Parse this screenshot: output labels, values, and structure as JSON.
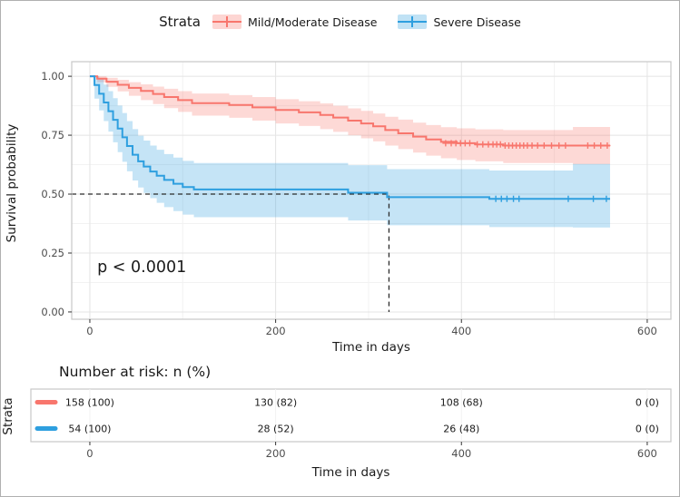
{
  "legend": {
    "title": "Strata",
    "items": [
      {
        "label": "Mild/Moderate Disease",
        "color": "#F8766D"
      },
      {
        "label": "Severe Disease",
        "color": "#2E9FDF"
      }
    ]
  },
  "chart_data": {
    "type": "line",
    "subtype": "kaplan-meier-step",
    "title": "",
    "xlabel": "Time in days",
    "ylabel": "Survival probability",
    "xlim": [
      0,
      600
    ],
    "ylim": [
      0,
      1
    ],
    "xticks": [
      0,
      200,
      400,
      600
    ],
    "xtick_labels": [
      "0",
      "200",
      "400",
      "600"
    ],
    "yticks": [
      0,
      0.25,
      0.5,
      0.75,
      1.0
    ],
    "ytick_labels": [
      "0.00",
      "0.25",
      "0.50",
      "0.75",
      "1.00"
    ],
    "x_minor_gridlines": [
      100,
      300,
      500
    ],
    "y_minor_gridlines": [
      0.125,
      0.375,
      0.625,
      0.875
    ],
    "grid": "on",
    "legend_position": "top",
    "annotation": {
      "text": "p < 0.0001",
      "x": 8,
      "y": 0.17
    },
    "median_line": {
      "x": 322,
      "y": 0.5
    },
    "series": [
      {
        "id": "mild-moderate",
        "name": "Mild/Moderate Disease",
        "color": "#F8766D",
        "points": [
          [
            0,
            1.0
          ],
          [
            8,
            0.99
          ],
          [
            18,
            0.977
          ],
          [
            30,
            0.964
          ],
          [
            42,
            0.951
          ],
          [
            55,
            0.938
          ],
          [
            68,
            0.925
          ],
          [
            80,
            0.912
          ],
          [
            95,
            0.899
          ],
          [
            110,
            0.886
          ],
          [
            150,
            0.878
          ],
          [
            175,
            0.868
          ],
          [
            200,
            0.857
          ],
          [
            225,
            0.847
          ],
          [
            248,
            0.836
          ],
          [
            262,
            0.825
          ],
          [
            278,
            0.812
          ],
          [
            292,
            0.8
          ],
          [
            305,
            0.788
          ],
          [
            318,
            0.772
          ],
          [
            332,
            0.758
          ],
          [
            348,
            0.744
          ],
          [
            362,
            0.732
          ],
          [
            378,
            0.722
          ],
          [
            395,
            0.716
          ],
          [
            415,
            0.711
          ],
          [
            445,
            0.706
          ],
          [
            560,
            0.706
          ]
        ],
        "ci": [
          [
            0,
            1.0,
            1.0
          ],
          [
            8,
            0.975,
            1.0
          ],
          [
            18,
            0.955,
            0.993
          ],
          [
            30,
            0.936,
            0.985
          ],
          [
            42,
            0.917,
            0.975
          ],
          [
            55,
            0.899,
            0.966
          ],
          [
            68,
            0.882,
            0.956
          ],
          [
            80,
            0.865,
            0.947
          ],
          [
            95,
            0.849,
            0.937
          ],
          [
            110,
            0.833,
            0.927
          ],
          [
            150,
            0.824,
            0.92
          ],
          [
            175,
            0.812,
            0.912
          ],
          [
            200,
            0.8,
            0.903
          ],
          [
            225,
            0.789,
            0.894
          ],
          [
            248,
            0.776,
            0.885
          ],
          [
            262,
            0.764,
            0.875
          ],
          [
            278,
            0.75,
            0.864
          ],
          [
            292,
            0.737,
            0.853
          ],
          [
            305,
            0.724,
            0.842
          ],
          [
            318,
            0.706,
            0.828
          ],
          [
            332,
            0.691,
            0.816
          ],
          [
            348,
            0.676,
            0.803
          ],
          [
            362,
            0.663,
            0.793
          ],
          [
            378,
            0.652,
            0.784
          ],
          [
            395,
            0.645,
            0.779
          ],
          [
            415,
            0.639,
            0.775
          ],
          [
            445,
            0.632,
            0.772
          ],
          [
            520,
            0.627,
            0.785
          ],
          [
            560,
            0.627,
            0.785
          ]
        ],
        "censor": [
          [
            383,
            0.716
          ],
          [
            389,
            0.716
          ],
          [
            394,
            0.716
          ],
          [
            399,
            0.716
          ],
          [
            404,
            0.716
          ],
          [
            409,
            0.716
          ],
          [
            417,
            0.711
          ],
          [
            423,
            0.711
          ],
          [
            429,
            0.711
          ],
          [
            434,
            0.711
          ],
          [
            438,
            0.711
          ],
          [
            442,
            0.711
          ],
          [
            447,
            0.706
          ],
          [
            451,
            0.706
          ],
          [
            455,
            0.706
          ],
          [
            459,
            0.706
          ],
          [
            463,
            0.706
          ],
          [
            467,
            0.706
          ],
          [
            471,
            0.706
          ],
          [
            476,
            0.706
          ],
          [
            482,
            0.706
          ],
          [
            489,
            0.706
          ],
          [
            497,
            0.706
          ],
          [
            505,
            0.706
          ],
          [
            512,
            0.706
          ],
          [
            536,
            0.706
          ],
          [
            543,
            0.706
          ],
          [
            550,
            0.706
          ],
          [
            557,
            0.706
          ]
        ]
      },
      {
        "id": "severe",
        "name": "Severe Disease",
        "color": "#2E9FDF",
        "points": [
          [
            0,
            1.0
          ],
          [
            5,
            0.963
          ],
          [
            10,
            0.926
          ],
          [
            15,
            0.889
          ],
          [
            20,
            0.852
          ],
          [
            25,
            0.815
          ],
          [
            30,
            0.778
          ],
          [
            35,
            0.741
          ],
          [
            40,
            0.704
          ],
          [
            46,
            0.667
          ],
          [
            52,
            0.639
          ],
          [
            58,
            0.617
          ],
          [
            65,
            0.596
          ],
          [
            72,
            0.578
          ],
          [
            80,
            0.56
          ],
          [
            90,
            0.544
          ],
          [
            100,
            0.53
          ],
          [
            112,
            0.52
          ],
          [
            278,
            0.506
          ],
          [
            320,
            0.487
          ],
          [
            430,
            0.48
          ],
          [
            560,
            0.48
          ]
        ],
        "ci": [
          [
            0,
            1.0,
            1.0
          ],
          [
            5,
            0.905,
            1.0
          ],
          [
            10,
            0.855,
            0.99
          ],
          [
            15,
            0.81,
            0.965
          ],
          [
            20,
            0.765,
            0.937
          ],
          [
            25,
            0.72,
            0.907
          ],
          [
            30,
            0.678,
            0.876
          ],
          [
            35,
            0.637,
            0.844
          ],
          [
            40,
            0.597,
            0.81
          ],
          [
            46,
            0.558,
            0.776
          ],
          [
            52,
            0.528,
            0.748
          ],
          [
            58,
            0.505,
            0.727
          ],
          [
            65,
            0.483,
            0.706
          ],
          [
            72,
            0.463,
            0.688
          ],
          [
            80,
            0.445,
            0.67
          ],
          [
            90,
            0.428,
            0.655
          ],
          [
            100,
            0.413,
            0.641
          ],
          [
            112,
            0.402,
            0.632
          ],
          [
            278,
            0.388,
            0.623
          ],
          [
            320,
            0.368,
            0.606
          ],
          [
            430,
            0.36,
            0.6
          ],
          [
            520,
            0.358,
            0.628
          ],
          [
            560,
            0.358,
            0.628
          ]
        ],
        "censor": [
          [
            437,
            0.48
          ],
          [
            443,
            0.48
          ],
          [
            449,
            0.48
          ],
          [
            456,
            0.48
          ],
          [
            462,
            0.48
          ],
          [
            515,
            0.48
          ],
          [
            542,
            0.48
          ],
          [
            556,
            0.48
          ]
        ]
      }
    ]
  },
  "risk_table": {
    "title": "Number at risk: n (%)",
    "axis_label": "Strata",
    "xlabel": "Time in days",
    "times": [
      0,
      200,
      400,
      600
    ],
    "time_labels": [
      "0",
      "200",
      "400",
      "600"
    ],
    "rows": [
      {
        "strata": "Mild/Moderate Disease",
        "color": "#F8766D",
        "values": [
          "158 (100)",
          "130 (82)",
          "108 (68)",
          "0 (0)"
        ]
      },
      {
        "strata": "Severe Disease",
        "color": "#2E9FDF",
        "values": [
          "54 (100)",
          "28 (52)",
          "26 (48)",
          "0 (0)"
        ]
      }
    ]
  },
  "colors": {
    "grid_major": "#E4E4E4",
    "grid_minor": "#F2F2F2",
    "panel_border": "#C8C8C8",
    "tick_text": "#4d4d4d",
    "title_text": "#1a1a1a",
    "dashed_line": "#2b2b2b"
  }
}
